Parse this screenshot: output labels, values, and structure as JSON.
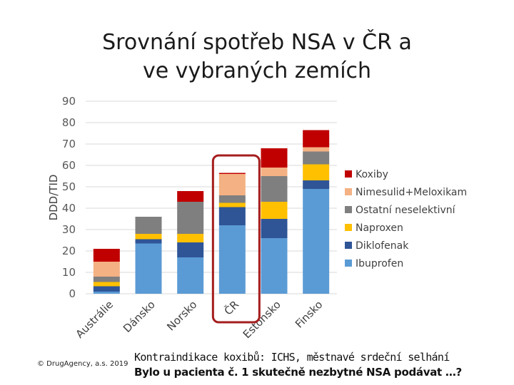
{
  "title_line1": "Srovnání spotřeb NSA v ČR a",
  "title_line2": "ve vybraných zemích",
  "copyright": "© DrugAgency, a.s. 2019",
  "note_line1": "Kontraindikace koxibů: ICHS, městnavé srdeční selhání",
  "note_line2": "Bylo u pacienta č. 1 skutečně nezbytné NSA podávat …?",
  "highlight_color": "#a51d1d",
  "chart_data": {
    "type": "bar",
    "stacked": true,
    "categories": [
      "Austrálie",
      "Dánsko",
      "Norsko",
      "ČR",
      "Estonsko",
      "Finsko"
    ],
    "ylabel": "DDD/TID",
    "ylim": [
      0,
      90
    ],
    "yticks": [
      0,
      10,
      20,
      30,
      40,
      50,
      60,
      70,
      80,
      90
    ],
    "grid": true,
    "legend_position": "right",
    "highlight_category": "ČR",
    "series": [
      {
        "name": "Ibuprofen",
        "color": "#5b9bd5",
        "values": [
          1,
          23.5,
          17,
          32,
          26,
          49
        ]
      },
      {
        "name": "Diklofenak",
        "color": "#2f5597",
        "values": [
          2.5,
          2,
          7,
          8.5,
          9,
          4
        ]
      },
      {
        "name": "Naproxen",
        "color": "#ffc000",
        "values": [
          2,
          2.5,
          4,
          2,
          8,
          7.5
        ]
      },
      {
        "name": "Ostatní neselektivní",
        "color": "#7f7f7f",
        "values": [
          2.5,
          8,
          15,
          3.5,
          12,
          6
        ]
      },
      {
        "name": "Nimesulid+Meloxikam",
        "color": "#f4b183",
        "values": [
          7,
          0,
          0,
          10,
          4,
          2
        ]
      },
      {
        "name": "Koxiby",
        "color": "#c00000",
        "values": [
          6,
          0,
          5,
          0.5,
          9,
          8
        ]
      }
    ]
  }
}
